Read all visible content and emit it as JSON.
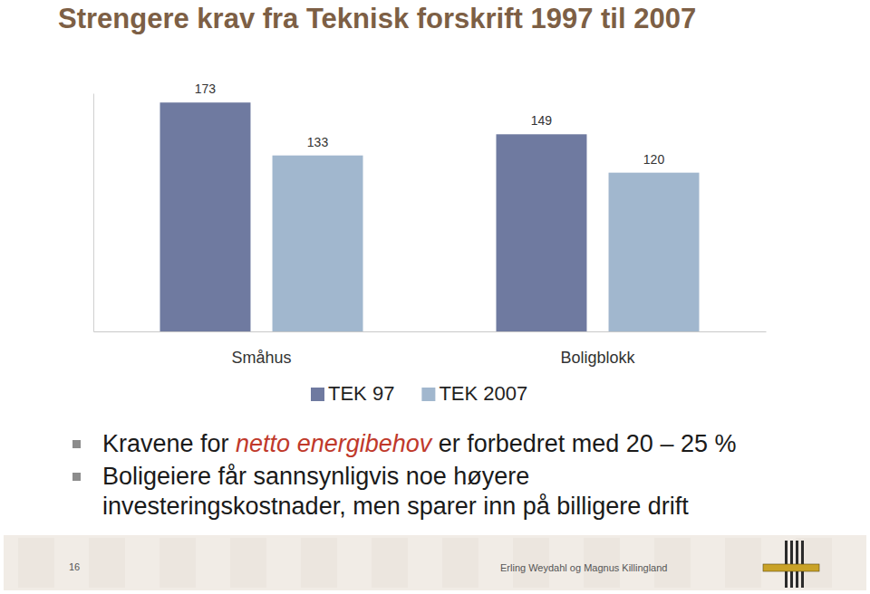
{
  "chart_data": {
    "type": "bar",
    "title": "Strengere krav fra Teknisk forskrift 1997 til 2007",
    "categories": [
      "Småhus",
      "Boligblokk"
    ],
    "series": [
      {
        "name": "TEK 97",
        "color": "#6f7aa0",
        "values": [
          173,
          149
        ]
      },
      {
        "name": "TEK 2007",
        "color": "#a1b7ce",
        "values": [
          133,
          120
        ]
      }
    ],
    "ylim": [
      0,
      180
    ],
    "grid": false,
    "legend": "bottom",
    "data_labels": true,
    "tick_labels": "x"
  },
  "slide": {
    "bullets": [
      [
        "Kravene for ",
        "netto energibehov",
        " er forbedret med 20 – 25 %"
      ],
      [
        "Boligeiere får sannsynligvis noe høyere investeringskostnader, men sparer inn på billigere drift"
      ]
    ],
    "page_number": "16",
    "footer": "Erling Weydahl og Magnus Killingland"
  }
}
